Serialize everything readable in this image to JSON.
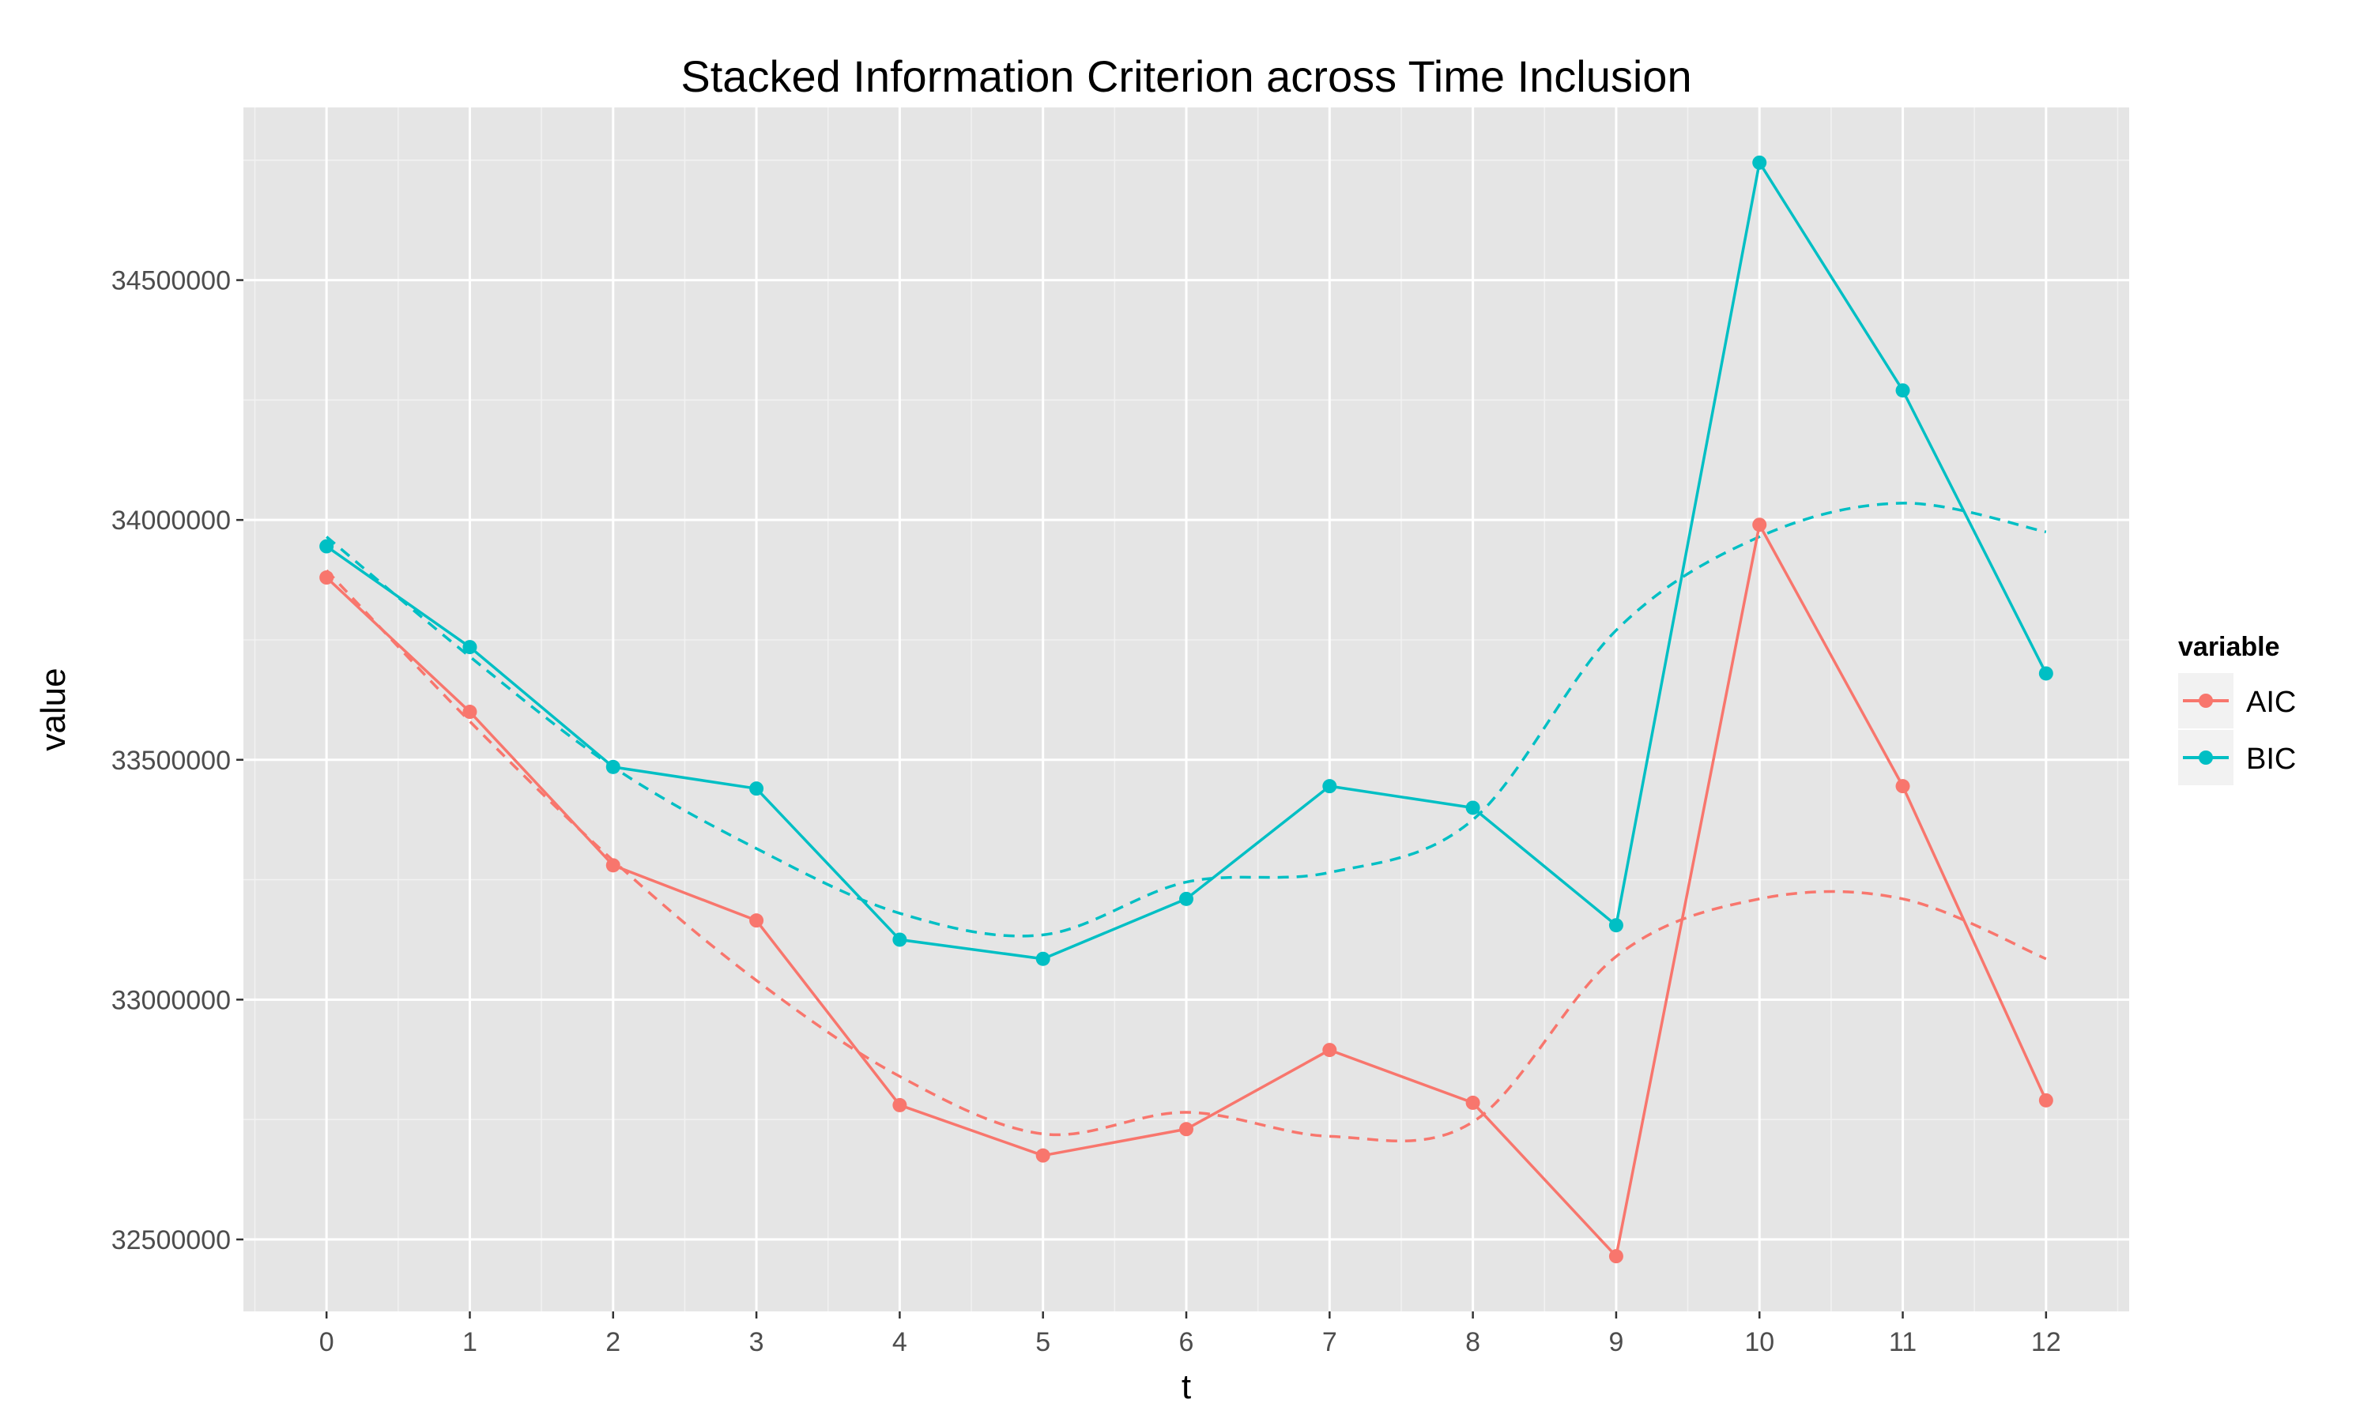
{
  "chart_data": {
    "type": "line",
    "title": "Stacked Information Criterion across Time Inclusion",
    "xlabel": "t",
    "ylabel": "value",
    "x": [
      0,
      1,
      2,
      3,
      4,
      5,
      6,
      7,
      8,
      9,
      10,
      11,
      12
    ],
    "x_tick_labels": [
      "0",
      "1",
      "2",
      "3",
      "4",
      "5",
      "6",
      "7",
      "8",
      "9",
      "10",
      "11",
      "12"
    ],
    "xlim": [
      -0.58,
      12.58
    ],
    "ylim": [
      32350000,
      34860000
    ],
    "y_ticks": [
      32500000,
      33000000,
      33500000,
      34000000,
      34500000
    ],
    "y_tick_labels": [
      "32500000",
      "33000000",
      "33500000",
      "34000000",
      "34500000"
    ],
    "grid": true,
    "legend": {
      "title": "variable",
      "position": "right"
    },
    "series": [
      {
        "name": "AIC",
        "color": "#F8766D",
        "values": [
          33880000,
          33600000,
          33280000,
          33165000,
          32780000,
          32675000,
          32730000,
          32895000,
          32785000,
          32465000,
          33990000,
          33445000,
          32790000
        ],
        "smooth": [
          33895000,
          33580000,
          33290000,
          33040000,
          32840000,
          32720000,
          32765000,
          32715000,
          32745000,
          33090000,
          33210000,
          33210000,
          33085000
        ]
      },
      {
        "name": "BIC",
        "color": "#00BFC4",
        "values": [
          33945000,
          33735000,
          33485000,
          33440000,
          33125000,
          33085000,
          33210000,
          33445000,
          33400000,
          33155000,
          34745000,
          34270000,
          33680000
        ],
        "smooth": [
          33965000,
          33715000,
          33485000,
          33315000,
          33180000,
          33135000,
          33245000,
          33265000,
          33375000,
          33770000,
          33965000,
          34035000,
          33975000
        ]
      }
    ]
  }
}
